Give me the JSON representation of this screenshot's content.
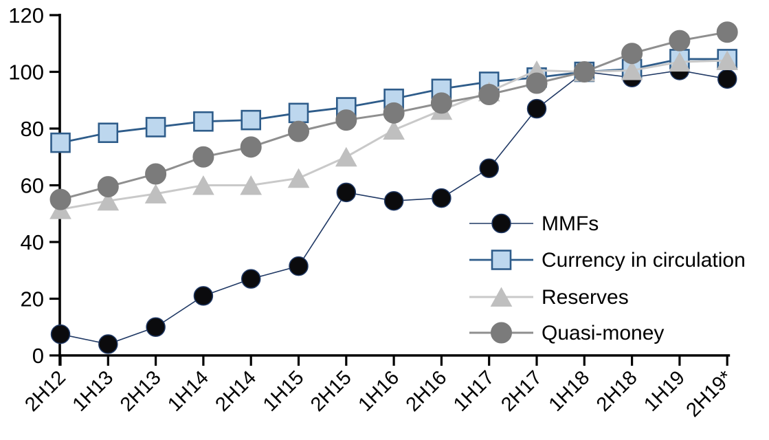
{
  "chart_data": {
    "type": "line",
    "title": "",
    "xlabel": "",
    "ylabel": "",
    "grid": false,
    "legend_position": "inside-right",
    "y_axis": {
      "min": 0,
      "max": 120,
      "step": 20,
      "tick_labels": [
        "0",
        "20",
        "40",
        "60",
        "80",
        "100",
        "120"
      ]
    },
    "categories": [
      "2H12",
      "1H13",
      "2H13",
      "1H14",
      "2H14",
      "1H15",
      "2H15",
      "1H16",
      "2H16",
      "1H17",
      "2H17",
      "1H18",
      "2H18",
      "1H19",
      "2H19*"
    ],
    "series": [
      {
        "name": "MMFs",
        "marker": "circle",
        "marker_fill": "#0b0b0d",
        "marker_edge": "#1f3864",
        "marker_edge_width": 1.5,
        "line_color": "#1f3864",
        "line_width": 1.6,
        "marker_size": 27,
        "values": [
          7.5,
          4,
          10,
          21,
          27,
          31.5,
          57.5,
          54.5,
          55.5,
          66,
          87,
          100,
          98,
          100.5,
          97.5
        ]
      },
      {
        "name": "Currency in circulation",
        "marker": "square",
        "marker_fill": "#bdd7ee",
        "marker_edge": "#2e5c8a",
        "marker_edge_width": 2.6,
        "line_color": "#2e5c8a",
        "line_width": 2.8,
        "marker_size": 27,
        "values": [
          75,
          78.5,
          80.5,
          82.5,
          83,
          85.5,
          87.5,
          90.5,
          94,
          96.5,
          98,
          100,
          101,
          104.5,
          104.5
        ]
      },
      {
        "name": "Reserves",
        "marker": "triangle",
        "marker_fill": "#bfbfbf",
        "marker_edge": "#bfbfbf",
        "marker_edge_width": 1,
        "line_color": "#c9c9c9",
        "line_width": 3,
        "marker_size": 30,
        "values": [
          51.5,
          54.5,
          57,
          60,
          60,
          62.5,
          70,
          79.5,
          86.5,
          93,
          100.5,
          100,
          100.5,
          103.5,
          104
        ]
      },
      {
        "name": "Quasi-money",
        "marker": "circle",
        "marker_fill": "#7b7b7b",
        "marker_edge": "#7b7b7b",
        "marker_edge_width": 1,
        "line_color": "#8f8f8f",
        "line_width": 3,
        "marker_size": 30,
        "values": [
          55,
          59.5,
          64,
          70,
          73.5,
          79,
          83,
          85.5,
          89,
          92,
          96,
          100,
          106.5,
          111,
          114
        ]
      }
    ],
    "axis_color": "#000000",
    "text_color": "#000000"
  }
}
